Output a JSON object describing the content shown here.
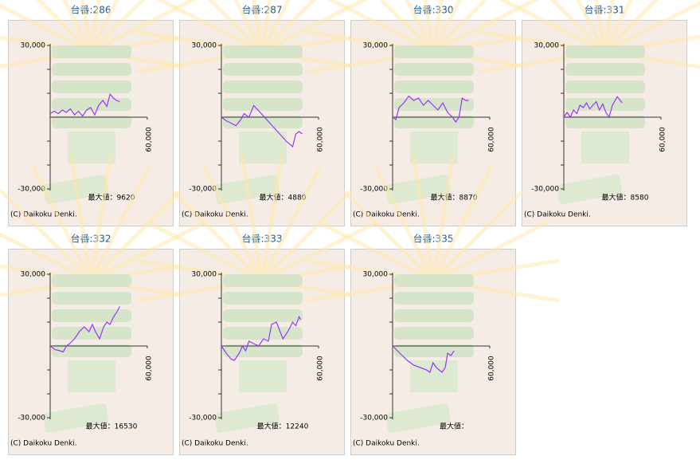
{
  "chart_data": [
    {
      "type": "line",
      "title": "台番:286",
      "annotation": "最大値：9620",
      "footer": "(C) Daikoku Denki.",
      "color": "#9933ff",
      "xlim": [
        0,
        60000
      ],
      "ylim": [
        -30000,
        30000
      ],
      "xticks": [
        {
          "value": 60000,
          "label": "60,000"
        }
      ],
      "yticks": [
        {
          "value": 30000,
          "label": "30,000"
        },
        {
          "value": -30000,
          "label": "-30,000"
        }
      ],
      "minor_yticks": [
        20000,
        10000,
        -10000,
        -20000
      ],
      "x": [
        0,
        2500,
        5000,
        7500,
        10000,
        12500,
        15000,
        17500,
        20000,
        22500,
        25000,
        27500,
        30000,
        32500,
        35000,
        37000,
        39000,
        41000,
        43000
      ],
      "values": [
        1500,
        2500,
        1500,
        3000,
        2000,
        3500,
        1000,
        2500,
        500,
        3000,
        4000,
        1000,
        5000,
        7000,
        4500,
        9620,
        8000,
        7000,
        6500
      ]
    },
    {
      "type": "line",
      "title": "台番:287",
      "annotation": "最大値：4880",
      "footer": "(C) Daikoku Denki.",
      "color": "#9933ff",
      "xlim": [
        0,
        60000
      ],
      "ylim": [
        -30000,
        30000
      ],
      "xticks": [
        {
          "value": 60000,
          "label": "60,000"
        }
      ],
      "yticks": [
        {
          "value": 30000,
          "label": "30,000"
        },
        {
          "value": -30000,
          "label": "-30,000"
        }
      ],
      "minor_yticks": [
        20000,
        10000,
        -10000,
        -20000
      ],
      "x": [
        0,
        3000,
        6000,
        9000,
        12000,
        14000,
        17000,
        20000,
        24000,
        28000,
        32000,
        36000,
        40000,
        44000,
        46000,
        48000,
        50000
      ],
      "values": [
        0,
        -1500,
        -2500,
        -3500,
        -1000,
        1500,
        0,
        4880,
        2000,
        -1000,
        -4000,
        -7000,
        -10000,
        -12300,
        -7000,
        -6000,
        -7000
      ]
    },
    {
      "type": "line",
      "title": "台番:330",
      "annotation": "最大値：8870",
      "footer": "(C) Daikoku Denki.",
      "color": "#9933ff",
      "xlim": [
        0,
        60000
      ],
      "ylim": [
        -30000,
        30000
      ],
      "xticks": [
        {
          "value": 60000,
          "label": "60,000"
        }
      ],
      "yticks": [
        {
          "value": 30000,
          "label": "30,000"
        },
        {
          "value": -30000,
          "label": "-30,000"
        }
      ],
      "minor_yticks": [
        20000,
        10000,
        -10000,
        -20000
      ],
      "x": [
        0,
        2000,
        4000,
        7000,
        10000,
        13000,
        16000,
        19000,
        22000,
        25000,
        28000,
        31000,
        34000,
        37000,
        39000,
        41000,
        43000,
        45000,
        47000
      ],
      "values": [
        0,
        -1000,
        4000,
        6000,
        8870,
        7000,
        8000,
        5000,
        7000,
        5000,
        3000,
        6000,
        2000,
        0,
        -2000,
        0,
        8000,
        7000,
        7000
      ]
    },
    {
      "type": "line",
      "title": "台番:331",
      "annotation": "最大値：8580",
      "footer": "(C) Daikoku Denki.",
      "color": "#9933ff",
      "xlim": [
        0,
        60000
      ],
      "ylim": [
        -30000,
        30000
      ],
      "xticks": [
        {
          "value": 60000,
          "label": "60,000"
        }
      ],
      "yticks": [
        {
          "value": 30000,
          "label": "30,000"
        },
        {
          "value": -30000,
          "label": "-30,000"
        }
      ],
      "minor_yticks": [
        20000,
        10000,
        -10000,
        -20000
      ],
      "x": [
        0,
        2000,
        4000,
        6000,
        8000,
        10000,
        12000,
        14000,
        16000,
        18000,
        20000,
        22000,
        24000,
        26000,
        28000,
        30000,
        33000,
        36000
      ],
      "values": [
        0,
        2000,
        0,
        3000,
        1500,
        5000,
        4000,
        6000,
        3500,
        5000,
        6500,
        3000,
        5500,
        2000,
        0,
        5000,
        8580,
        6000
      ]
    },
    {
      "type": "line",
      "title": "台番:332",
      "annotation": "最大値：16530",
      "footer": "(C) Daikoku Denki.",
      "color": "#9933ff",
      "xlim": [
        0,
        60000
      ],
      "ylim": [
        -30000,
        30000
      ],
      "xticks": [
        {
          "value": 60000,
          "label": "60,000"
        }
      ],
      "yticks": [
        {
          "value": 30000,
          "label": "30,000"
        },
        {
          "value": -30000,
          "label": "-30,000"
        }
      ],
      "minor_yticks": [
        20000,
        10000,
        -10000,
        -20000
      ],
      "x": [
        0,
        3000,
        6000,
        8000,
        10000,
        12000,
        15000,
        18000,
        21000,
        24000,
        26000,
        28000,
        30500,
        33000,
        35000,
        37000,
        39000,
        41000,
        43000
      ],
      "values": [
        0,
        -1500,
        -2000,
        -2500,
        0,
        1000,
        3000,
        6000,
        8000,
        6000,
        9000,
        6000,
        3000,
        8000,
        10000,
        9000,
        12000,
        14000,
        16530
      ]
    },
    {
      "type": "line",
      "title": "台番:333",
      "annotation": "最大値：12240",
      "footer": "(C) Daikoku Denki.",
      "color": "#9933ff",
      "xlim": [
        0,
        60000
      ],
      "ylim": [
        -30000,
        30000
      ],
      "xticks": [
        {
          "value": 60000,
          "label": "60,000"
        }
      ],
      "yticks": [
        {
          "value": 30000,
          "label": "30,000"
        },
        {
          "value": -30000,
          "label": "-30,000"
        }
      ],
      "minor_yticks": [
        20000,
        10000,
        -10000,
        -20000
      ],
      "x": [
        0,
        3000,
        6000,
        8000,
        11000,
        13000,
        15000,
        17000,
        20000,
        23000,
        26000,
        29000,
        31000,
        34000,
        38000,
        41000,
        44000,
        46000,
        48000,
        49000
      ],
      "values": [
        0,
        -3000,
        -5500,
        -6000,
        -3000,
        0,
        -2000,
        2000,
        1000,
        0,
        3000,
        2000,
        9000,
        10000,
        3000,
        6000,
        10000,
        8500,
        12240,
        11000
      ]
    },
    {
      "type": "line",
      "title": "台番:335",
      "annotation": "最大値：",
      "footer": "(C) Daikoku Denki.",
      "color": "#9933ff",
      "xlim": [
        0,
        60000
      ],
      "ylim": [
        -30000,
        30000
      ],
      "xticks": [
        {
          "value": 60000,
          "label": "60,000"
        }
      ],
      "yticks": [
        {
          "value": 30000,
          "label": "30,000"
        },
        {
          "value": -30000,
          "label": "-30,000"
        }
      ],
      "minor_yticks": [
        20000,
        10000,
        -10000,
        -20000
      ],
      "x": [
        0,
        3000,
        6000,
        9000,
        13000,
        17000,
        21000,
        23000,
        25000,
        27000,
        30500,
        32500,
        34000,
        36000,
        38000
      ],
      "values": [
        0,
        -2000,
        -4000,
        -6000,
        -8000,
        -9000,
        -10000,
        -11000,
        -7000,
        -9000,
        -11000,
        -9000,
        -3000,
        -4000,
        -2000
      ]
    }
  ]
}
